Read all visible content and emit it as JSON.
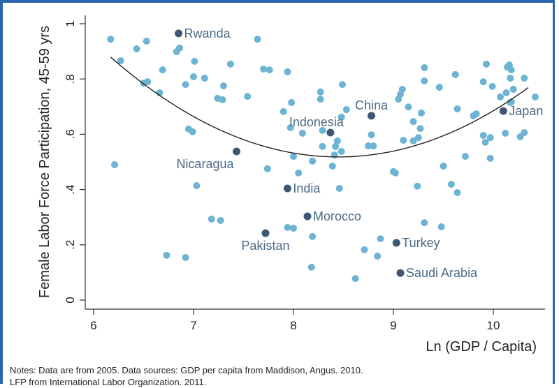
{
  "chart_data": {
    "type": "scatter",
    "title": "",
    "xlabel": "Ln (GDP / Capita)",
    "ylabel": "Female Labor Force Participation, 45-59 yrs",
    "xlim": [
      5.9,
      10.45
    ],
    "ylim": [
      -0.03,
      1.03
    ],
    "xticks": [
      6,
      7,
      8,
      9,
      10
    ],
    "xtick_labels": [
      "6",
      "7",
      "8",
      "9",
      "10"
    ],
    "yticks": [
      0,
      0.2,
      0.4,
      0.6,
      0.8,
      1
    ],
    "ytick_labels": [
      "0",
      ".2",
      ".4",
      ".6",
      ".8",
      "1"
    ],
    "grid": false,
    "colors": {
      "point": "#6db3d3",
      "highlight": "#3e5874",
      "label": "#4a6a85",
      "fit": "#222222",
      "border": "#2a66b0"
    },
    "points": [
      [
        6.17,
        0.944
      ],
      [
        6.27,
        0.866
      ],
      [
        6.43,
        0.909
      ],
      [
        6.53,
        0.937
      ],
      [
        6.5,
        0.785
      ],
      [
        6.54,
        0.79
      ],
      [
        6.66,
        0.75
      ],
      [
        6.69,
        0.833
      ],
      [
        6.83,
        0.899
      ],
      [
        6.86,
        0.912
      ],
      [
        6.92,
        0.78
      ],
      [
        7.01,
        0.864
      ],
      [
        7.0,
        0.808
      ],
      [
        7.11,
        0.803
      ],
      [
        7.37,
        0.854
      ],
      [
        7.3,
        0.775
      ],
      [
        7.24,
        0.73
      ],
      [
        7.29,
        0.725
      ],
      [
        7.54,
        0.737
      ],
      [
        7.64,
        0.944
      ],
      [
        7.7,
        0.836
      ],
      [
        7.76,
        0.833
      ],
      [
        6.95,
        0.619
      ],
      [
        6.99,
        0.609
      ],
      [
        6.21,
        0.49
      ],
      [
        7.74,
        0.475
      ],
      [
        7.03,
        0.414
      ],
      [
        7.94,
        0.826
      ],
      [
        7.98,
        0.715
      ],
      [
        7.9,
        0.682
      ],
      [
        7.97,
        0.624
      ],
      [
        8.09,
        0.604
      ],
      [
        8.27,
        0.753
      ],
      [
        8.27,
        0.727
      ],
      [
        8.49,
        0.78
      ],
      [
        8.53,
        0.689
      ],
      [
        8.48,
        0.662
      ],
      [
        8.29,
        0.614
      ],
      [
        8.44,
        0.576
      ],
      [
        8.29,
        0.556
      ],
      [
        8.42,
        0.556
      ],
      [
        8.48,
        0.538
      ],
      [
        8.41,
        0.525
      ],
      [
        8.0,
        0.52
      ],
      [
        8.19,
        0.503
      ],
      [
        8.39,
        0.485
      ],
      [
        8.05,
        0.46
      ],
      [
        8.46,
        0.404
      ],
      [
        8.78,
        0.598
      ],
      [
        8.75,
        0.558
      ],
      [
        8.8,
        0.558
      ],
      [
        9.09,
        0.763
      ],
      [
        9.07,
        0.745
      ],
      [
        9.05,
        0.727
      ],
      [
        9.15,
        0.699
      ],
      [
        9.31,
        0.841
      ],
      [
        9.31,
        0.793
      ],
      [
        9.46,
        0.77
      ],
      [
        9.2,
        0.646
      ],
      [
        9.28,
        0.677
      ],
      [
        9.27,
        0.621
      ],
      [
        9.25,
        0.588
      ],
      [
        9.1,
        0.578
      ],
      [
        9.2,
        0.576
      ],
      [
        9.62,
        0.816
      ],
      [
        9.64,
        0.692
      ],
      [
        9.8,
        0.667
      ],
      [
        9.83,
        0.674
      ],
      [
        9.72,
        0.52
      ],
      [
        9.5,
        0.485
      ],
      [
        9.0,
        0.465
      ],
      [
        9.02,
        0.46
      ],
      [
        9.24,
        0.412
      ],
      [
        9.58,
        0.419
      ],
      [
        9.64,
        0.389
      ],
      [
        9.93,
        0.854
      ],
      [
        9.9,
        0.79
      ],
      [
        9.99,
        0.773
      ],
      [
        10.14,
        0.843
      ],
      [
        10.16,
        0.851
      ],
      [
        10.18,
        0.833
      ],
      [
        10.17,
        0.803
      ],
      [
        10.31,
        0.803
      ],
      [
        10.07,
        0.735
      ],
      [
        10.13,
        0.75
      ],
      [
        10.2,
        0.763
      ],
      [
        10.42,
        0.735
      ],
      [
        10.17,
        0.715
      ],
      [
        10.18,
        0.717
      ],
      [
        9.9,
        0.596
      ],
      [
        9.97,
        0.588
      ],
      [
        9.92,
        0.571
      ],
      [
        10.12,
        0.604
      ],
      [
        10.27,
        0.591
      ],
      [
        10.31,
        0.606
      ],
      [
        9.97,
        0.513
      ],
      [
        7.18,
        0.293
      ],
      [
        7.27,
        0.288
      ],
      [
        7.94,
        0.263
      ],
      [
        8.0,
        0.26
      ],
      [
        8.19,
        0.23
      ],
      [
        8.87,
        0.222
      ],
      [
        8.71,
        0.182
      ],
      [
        8.84,
        0.159
      ],
      [
        8.18,
        0.119
      ],
      [
        8.62,
        0.078
      ],
      [
        6.73,
        0.162
      ],
      [
        6.92,
        0.154
      ],
      [
        9.31,
        0.28
      ],
      [
        9.48,
        0.265
      ]
    ],
    "labeled_points": [
      {
        "name": "Rwanda",
        "x": 6.85,
        "y": 0.965,
        "label_position": "right"
      },
      {
        "name": "Nicaragua",
        "x": 7.43,
        "y": 0.538,
        "label_position": "bottom-left"
      },
      {
        "name": "China",
        "x": 8.78,
        "y": 0.667,
        "label_position": "top"
      },
      {
        "name": "Indonesia",
        "x": 8.37,
        "y": 0.606,
        "label_position": "top-left"
      },
      {
        "name": "Japan",
        "x": 10.1,
        "y": 0.684,
        "label_position": "right"
      },
      {
        "name": "India",
        "x": 7.94,
        "y": 0.404,
        "label_position": "right"
      },
      {
        "name": "Morocco",
        "x": 8.14,
        "y": 0.303,
        "label_position": "right"
      },
      {
        "name": "Pakistan",
        "x": 7.72,
        "y": 0.242,
        "label_position": "bottom"
      },
      {
        "name": "Turkey",
        "x": 9.03,
        "y": 0.207,
        "label_position": "right"
      },
      {
        "name": "Saudi Arabia",
        "x": 9.07,
        "y": 0.098,
        "label_position": "right"
      }
    ],
    "fit_line": {
      "type": "quadratic",
      "x_range": [
        6.17,
        10.35
      ],
      "vertex_x": 8.45,
      "vertex_y": 0.518,
      "a": 0.0695
    }
  },
  "notes": {
    "line1": "Notes: Data are from 2005. Data sources: GDP per capita from Maddison, Angus. 2010.",
    "line2": "LFP from International Labor Organization. 2011."
  }
}
